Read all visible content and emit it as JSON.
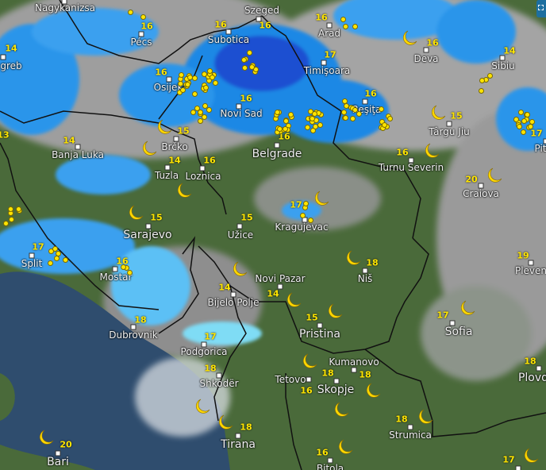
{
  "map": {
    "colors": {
      "land": "#4a6a3a",
      "sea": "#2f4d6e",
      "cloud": "#a9a9a9",
      "rain_light": "#7fdcf5",
      "rain": "#1e88e5",
      "rain_heavy": "#1b4fd1",
      "lightning": "#ffe500",
      "storm": "#b03aa0"
    },
    "icons": {
      "night": "crescent-moon-icon",
      "lightning": "lightning-dot-icon",
      "fullscreen": "fullscreen-icon"
    },
    "cities": [
      {
        "name": "Nagykanizsa",
        "temp": ""
      },
      {
        "name": "Pécs",
        "temp": "16"
      },
      {
        "name": "greb",
        "temp": "14"
      },
      {
        "name": "Szeged",
        "temp": "16"
      },
      {
        "name": "Subotica",
        "temp": "16"
      },
      {
        "name": "Osijek",
        "temp": "16"
      },
      {
        "name": "Novi Sad",
        "temp": "16"
      },
      {
        "name": "Belgrade",
        "temp": "16"
      },
      {
        "name": "Brčko",
        "temp": "15"
      },
      {
        "name": "Banja Luka",
        "temp": "14"
      },
      {
        "name": "Tuzla",
        "temp": "14"
      },
      {
        "name": "Loznica",
        "temp": "16"
      },
      {
        "name": "Sarajevo",
        "temp": "15"
      },
      {
        "name": "Užice",
        "temp": "15"
      },
      {
        "name": "Kragujevac",
        "temp": "17"
      },
      {
        "name": "Arad",
        "temp": "16"
      },
      {
        "name": "Timişoara",
        "temp": "17"
      },
      {
        "name": "Deva",
        "temp": "16"
      },
      {
        "name": "Sibiu",
        "temp": "14"
      },
      {
        "name": "Reşiţa",
        "temp": "16"
      },
      {
        "name": "Târgu Jiu",
        "temp": "15"
      },
      {
        "name": "Turnu Severin",
        "temp": "16"
      },
      {
        "name": "Craiova",
        "temp": "20"
      },
      {
        "name": "Pit",
        "temp": "17"
      },
      {
        "name": "Split",
        "temp": "17"
      },
      {
        "name": "Mostar",
        "temp": "16"
      },
      {
        "name": "Dubrovnik",
        "temp": "18"
      },
      {
        "name": "Bijelo Polje",
        "temp": "14"
      },
      {
        "name": "Novi Pazar",
        "temp": "14"
      },
      {
        "name": "Niš",
        "temp": "18"
      },
      {
        "name": "Pristina",
        "temp": "15"
      },
      {
        "name": "Podgorica",
        "temp": "17"
      },
      {
        "name": "Shkodër",
        "temp": "18"
      },
      {
        "name": "Tirana",
        "temp": "18"
      },
      {
        "name": "Bari",
        "temp": "20"
      },
      {
        "name": "Kumanovo",
        "temp": "18"
      },
      {
        "name": "Tetovo",
        "temp": "16"
      },
      {
        "name": "Skopje",
        "temp": "18"
      },
      {
        "name": "Sofia",
        "temp": "17"
      },
      {
        "name": "Pleven",
        "temp": "19"
      },
      {
        "name": "Plovd",
        "temp": "18"
      },
      {
        "name": "Strumica",
        "temp": "18"
      },
      {
        "name": "Bitola",
        "temp": "16"
      },
      {
        "name": "",
        "temp": "17"
      },
      {
        "name": "",
        "temp": "13"
      }
    ]
  }
}
